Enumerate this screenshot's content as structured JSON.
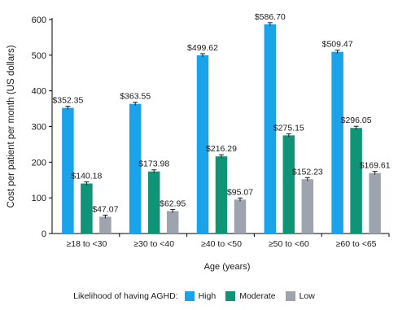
{
  "chart_data": {
    "type": "bar",
    "categories": [
      "≥18 to <30",
      "≥30 to <40",
      "≥40 to <50",
      "≥50 to <60",
      "≥60 to <65"
    ],
    "series": [
      {
        "name": "High",
        "values": [
          352.35,
          363.55,
          499.62,
          586.7,
          509.47
        ],
        "labels": [
          "$352.35",
          "$363.55",
          "$499.62",
          "$586.70",
          "$509.47"
        ],
        "color": "#1aa3e8"
      },
      {
        "name": "Moderate",
        "values": [
          140.18,
          173.98,
          216.29,
          275.15,
          296.05
        ],
        "labels": [
          "$140.18",
          "$173.98",
          "$216.29",
          "$275.15",
          "$296.05"
        ],
        "color": "#0f9478"
      },
      {
        "name": "Low",
        "values": [
          47.07,
          62.95,
          95.07,
          152.23,
          169.61
        ],
        "labels": [
          "$47.07",
          "$62.95",
          "$95.07",
          "$152.23",
          "$169.61"
        ],
        "color": "#9ea4ae"
      }
    ],
    "xlabel": "Age (years)",
    "ylabel": "Cost per patient per month (US dollars)",
    "ylim": [
      0,
      600
    ],
    "yticks": [
      0,
      100,
      200,
      300,
      400,
      500,
      600
    ],
    "grid": false,
    "error_bars": true,
    "legend_title": "Likelihood of having AGHD:",
    "legend_position": "bottom"
  }
}
